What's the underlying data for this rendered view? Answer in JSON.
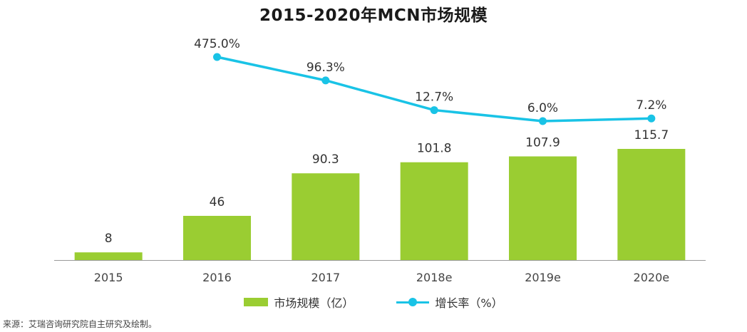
{
  "title": "2015-2020年MCN市场规模",
  "source_note": "来源：艾瑞咨询研究院自主研究及绘制。",
  "colors": {
    "bar": "#9acd32",
    "line": "#19c3e6",
    "axis": "#999999",
    "text": "#333333"
  },
  "chart_data": {
    "type": "bar",
    "title": "2015-2020年MCN市场规模",
    "categories": [
      "2015",
      "2016",
      "2017",
      "2018e",
      "2019e",
      "2020e"
    ],
    "series": [
      {
        "name": "市场规模（亿）",
        "type": "bar",
        "values": [
          8,
          46,
          90.3,
          101.8,
          107.9,
          115.7
        ],
        "labels": [
          "8",
          "46",
          "90.3",
          "101.8",
          "107.9",
          "115.7"
        ]
      },
      {
        "name": "增长率（%）",
        "type": "line",
        "values": [
          null,
          475.0,
          96.3,
          12.7,
          6.0,
          7.2
        ],
        "labels": [
          "",
          "475.0%",
          "96.3%",
          "12.7%",
          "6.0%",
          "7.2%"
        ]
      }
    ],
    "legend": "bottom",
    "grid": false
  }
}
